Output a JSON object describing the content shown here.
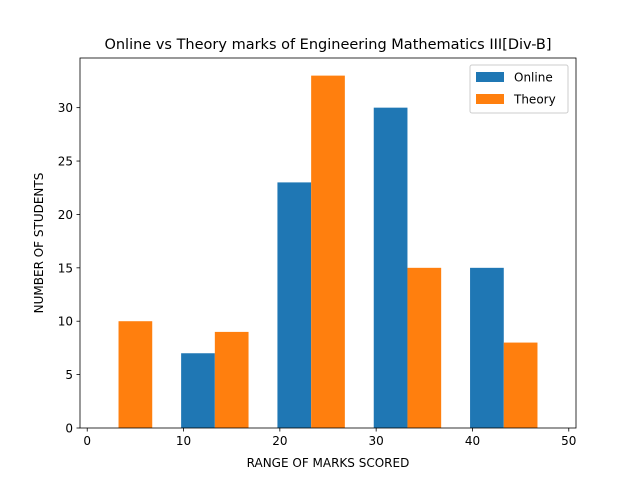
{
  "chart_data": {
    "type": "bar",
    "title": "Online vs Theory marks of Engineering Mathematics III[Div-B]",
    "xlabel": "RANGE OF MARKS SCORED",
    "ylabel": "NUMBER OF STUDENTS",
    "xlim": [
      -0.75,
      50.75
    ],
    "ylim": [
      0,
      34.65
    ],
    "xticks": [
      0,
      10,
      20,
      30,
      40,
      50
    ],
    "yticks": [
      0,
      5,
      10,
      15,
      20,
      25,
      30
    ],
    "bar_width": 3.5,
    "legend_position": "top-right",
    "series": [
      {
        "name": "Online",
        "color": "#1f77b4",
        "x": [
          11.5,
          21.5,
          31.5,
          41.5
        ],
        "values": [
          7,
          23,
          30,
          15
        ]
      },
      {
        "name": "Theory",
        "color": "#ff7f0e",
        "x": [
          5,
          15,
          25,
          35,
          45
        ],
        "values": [
          10,
          9,
          33,
          15,
          8
        ]
      }
    ]
  }
}
